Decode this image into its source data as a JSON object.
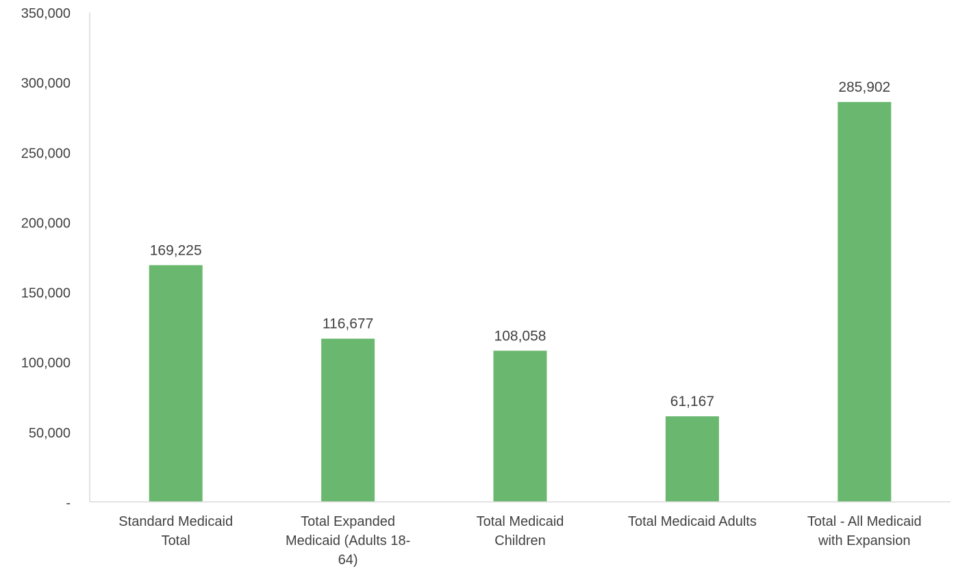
{
  "chart_data": {
    "type": "bar",
    "title": "",
    "xlabel": "",
    "ylabel": "",
    "categories": [
      [
        "Standard Medicaid",
        "Total"
      ],
      [
        "Total Expanded",
        "Medicaid (Adults 18-",
        "64)"
      ],
      [
        "Total Medicaid",
        "Children"
      ],
      [
        "Total Medicaid Adults"
      ],
      [
        "Total - All Medicaid",
        "with Expansion"
      ]
    ],
    "values": [
      169225,
      116677,
      108058,
      61167,
      285902
    ],
    "data_labels": [
      "169,225",
      "116,677",
      "108,058",
      "61,167",
      "285,902"
    ],
    "ylim": [
      0,
      350000
    ],
    "yticks": [
      0,
      50000,
      100000,
      150000,
      200000,
      250000,
      300000,
      350000
    ],
    "ytick_labels": [
      "-",
      "50,000",
      "100,000",
      "150,000",
      "200,000",
      "250,000",
      "300,000",
      "350,000"
    ],
    "grid": false,
    "legend": "none",
    "colors": {
      "bar": "#6ab86f",
      "axis": "#d9d9d9",
      "text": "#404040"
    }
  }
}
